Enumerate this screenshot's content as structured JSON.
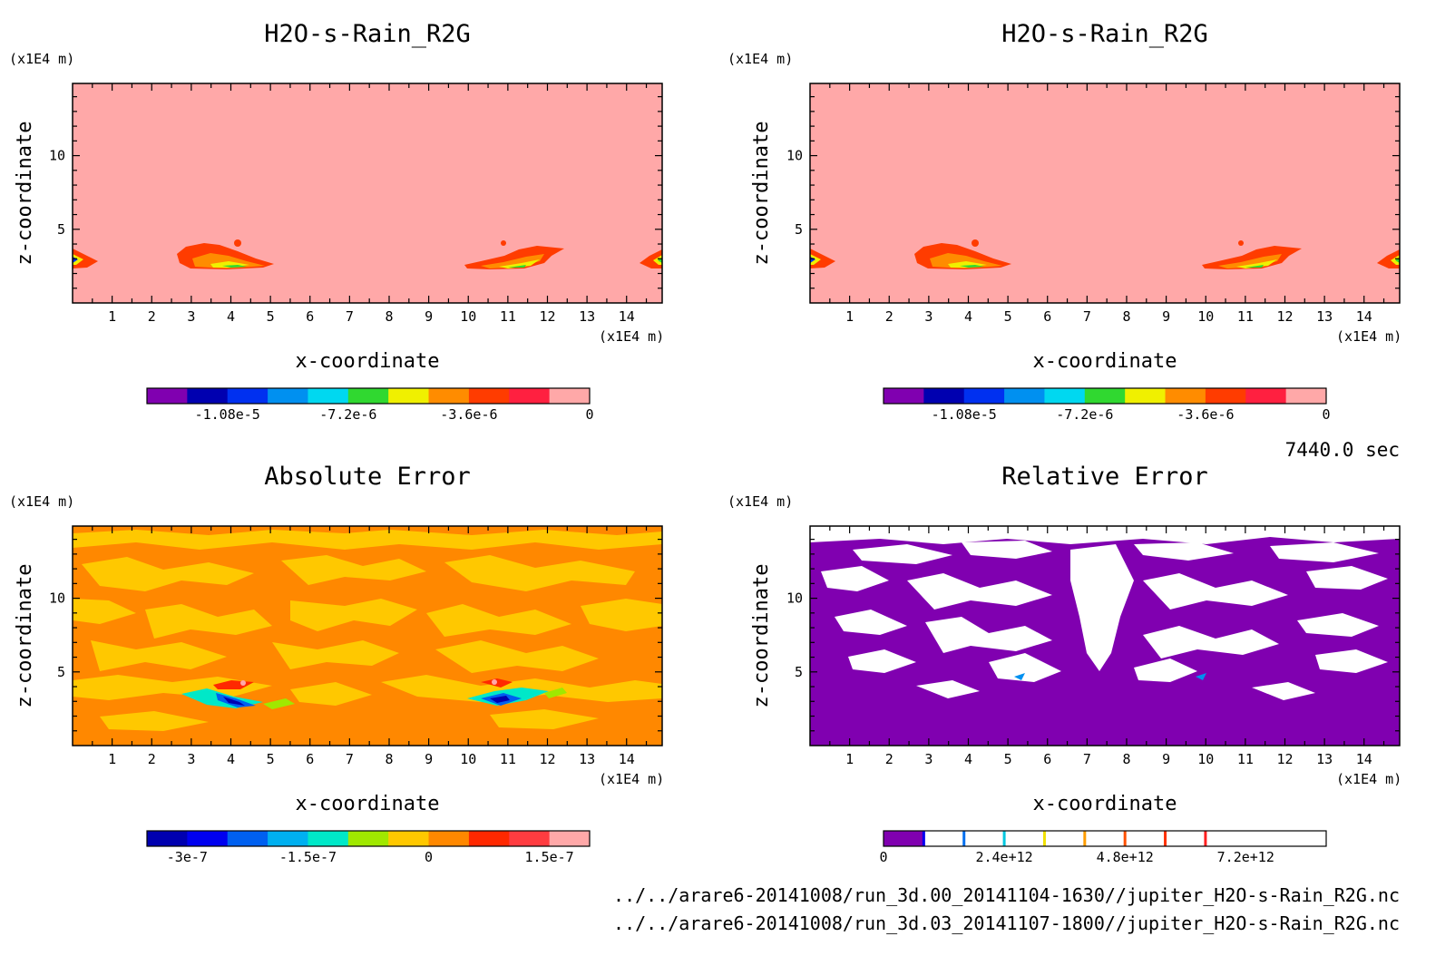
{
  "figure": {
    "time_label": "7440.0 sec",
    "file_paths": [
      "../../arare6-20141008/run_3d.00_20141104-1630//jupiter_H2O-s-Rain_R2G.nc",
      "../../arare6-20141008/run_3d.03_20141107-1800//jupiter_H2O-s-Rain_R2G.nc"
    ]
  },
  "colors": {
    "rain_base": "#FFA8A8",
    "abs_base": "#FF8800",
    "abs_patch": "#FFC800",
    "rel_base": "#8000B0",
    "rel_patch": "#FFFFFF"
  },
  "chart_data": [
    {
      "type": "heatmap",
      "title": "H2O-s-Rain_R2G",
      "xlabel": "x-coordinate",
      "ylabel": "z-coordinate",
      "x_unit": "(x1E4 m)",
      "y_unit": "(x1E4 m)",
      "xlim": [
        0,
        14.9
      ],
      "ylim": [
        0,
        14.9
      ],
      "x_ticks": [
        1,
        2,
        3,
        4,
        5,
        6,
        7,
        8,
        9,
        10,
        11,
        12,
        13,
        14
      ],
      "y_ticks": [
        5,
        10
      ],
      "colorbar": {
        "colors": [
          "#8000B0",
          "#0000B0",
          "#0030F0",
          "#0090F0",
          "#00D8F0",
          "#30D830",
          "#F0F000",
          "#FF8C00",
          "#FF3C00",
          "#FF2040",
          "#FFA8A8"
        ],
        "tick_labels": [
          "-1.08e-5",
          "-7.2e-6",
          "-3.6e-6",
          "0"
        ],
        "tick_positions": [
          2,
          5,
          8,
          11
        ]
      }
    },
    {
      "type": "heatmap",
      "title": "H2O-s-Rain_R2G",
      "xlabel": "x-coordinate",
      "ylabel": "z-coordinate",
      "x_unit": "(x1E4 m)",
      "y_unit": "(x1E4 m)",
      "xlim": [
        0,
        14.9
      ],
      "ylim": [
        0,
        14.9
      ],
      "x_ticks": [
        1,
        2,
        3,
        4,
        5,
        6,
        7,
        8,
        9,
        10,
        11,
        12,
        13,
        14
      ],
      "y_ticks": [
        5,
        10
      ],
      "colorbar": {
        "colors": [
          "#8000B0",
          "#0000B0",
          "#0030F0",
          "#0090F0",
          "#00D8F0",
          "#30D830",
          "#F0F000",
          "#FF8C00",
          "#FF3C00",
          "#FF2040",
          "#FFA8A8"
        ],
        "tick_labels": [
          "-1.08e-5",
          "-7.2e-6",
          "-3.6e-6",
          "0"
        ],
        "tick_positions": [
          2,
          5,
          8,
          11
        ]
      }
    },
    {
      "type": "heatmap",
      "title": "Absolute Error",
      "xlabel": "x-coordinate",
      "ylabel": "z-coordinate",
      "x_unit": "(x1E4 m)",
      "y_unit": "(x1E4 m)",
      "xlim": [
        0,
        14.9
      ],
      "ylim": [
        0,
        14.9
      ],
      "x_ticks": [
        1,
        2,
        3,
        4,
        5,
        6,
        7,
        8,
        9,
        10,
        11,
        12,
        13,
        14
      ],
      "y_ticks": [
        5,
        10
      ],
      "colorbar": {
        "colors": [
          "#0000B0",
          "#0000F0",
          "#0060F0",
          "#00B0F0",
          "#00E8C8",
          "#A0E800",
          "#FFC800",
          "#FF8800",
          "#FF2800",
          "#FF3C40",
          "#FFA8A8"
        ],
        "tick_labels": [
          "-3e-7",
          "-1.5e-7",
          "0",
          "1.5e-7"
        ],
        "tick_positions": [
          1,
          4,
          7,
          10
        ]
      }
    },
    {
      "type": "heatmap",
      "title": "Relative Error",
      "xlabel": "x-coordinate",
      "ylabel": "z-coordinate",
      "x_unit": "(x1E4 m)",
      "y_unit": "(x1E4 m)",
      "xlim": [
        0,
        14.9
      ],
      "ylim": [
        0,
        14.9
      ],
      "x_ticks": [
        1,
        2,
        3,
        4,
        5,
        6,
        7,
        8,
        9,
        10,
        11,
        12,
        13,
        14
      ],
      "y_ticks": [
        5,
        10
      ],
      "colorbar": {
        "colors": [
          "#8000B0",
          "#FFFFFF",
          "#FFFFFF",
          "#FFFFFF",
          "#FFFFFF",
          "#FFFFFF",
          "#FFFFFF",
          "#FFFFFF",
          "#FFFFFF",
          "#FFFFFF",
          "#FFFFFF"
        ],
        "dividers": [
          "#0000F0",
          "#0070F0",
          "#00C8E0",
          "#F0E000",
          "#FF9C00",
          "#FF5000",
          "#FF3000",
          "#FF2020"
        ],
        "tick_labels": [
          "0",
          "2.4e+12",
          "4.8e+12",
          "7.2e+12"
        ],
        "tick_positions": [
          0,
          3,
          6,
          9
        ]
      }
    }
  ]
}
